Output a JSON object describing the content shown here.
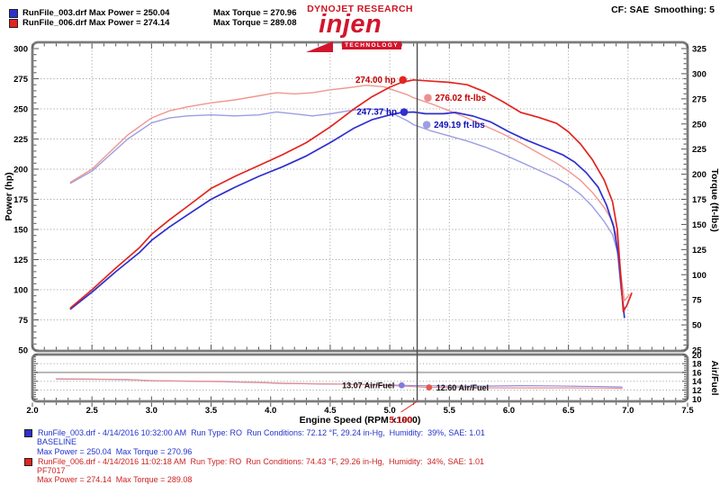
{
  "header": {
    "legend": [
      {
        "file_power": "RunFile_003.drf Max Power = 250.04",
        "torque": "Max Torque = 270.96",
        "color": "#2f2fcf"
      },
      {
        "file_power": "RunFile_006.drf Max Power = 274.14",
        "torque": "Max Torque = 289.08",
        "color": "#e2251f"
      }
    ],
    "brand_top": "DYNOJET RESEARCH",
    "logo_text": "injen",
    "logo_sub": "TECHNOLOGY",
    "settings": "CF: SAE  Smoothing: 5"
  },
  "chart_data": {
    "type": "line",
    "x_axis": {
      "label": "Engine Speed (RPM x1000)",
      "min": 2.0,
      "max": 7.5,
      "ticks": [
        "2.0",
        "2.5",
        "3.0",
        "3.5",
        "4.0",
        "4.5",
        "5.0",
        "5.5",
        "6.0",
        "6.5",
        "7.0",
        "7.5"
      ]
    },
    "axes": {
      "power": {
        "label": "Power (hp)",
        "min": 50,
        "max": 300,
        "ticks": [
          300,
          275,
          250,
          225,
          200,
          175,
          150,
          125,
          100,
          75,
          50
        ]
      },
      "torque": {
        "label": "Torque (ft-lbs)",
        "min": 25,
        "max": 325,
        "ticks": [
          325,
          300,
          275,
          250,
          225,
          200,
          175,
          150,
          125,
          100,
          75,
          50,
          25
        ]
      },
      "airfuel": {
        "label": "Air/Fuel",
        "min": 10,
        "max": 20,
        "ticks": [
          20,
          18,
          16,
          14,
          12,
          10
        ]
      }
    },
    "grid": {
      "main_vertical_rpm": [
        2.5,
        3.0,
        3.5,
        4.0,
        4.5,
        5.0,
        5.5,
        6.0,
        6.5,
        7.0
      ],
      "main_horizontal_power": [
        275,
        250,
        225,
        200,
        175,
        150,
        125,
        100,
        75
      ],
      "af_horizontal": [
        18,
        16,
        14,
        12
      ]
    },
    "cursor": {
      "rpm": 5.23,
      "readout": "5.190"
    },
    "series": [
      {
        "name": "runfile-003-torque",
        "label": "RunFile_003 Torque",
        "panel": "main",
        "axis": "torque",
        "color": "#9d9de4",
        "width": 1.4,
        "points": [
          [
            2.32,
            191
          ],
          [
            2.5,
            203
          ],
          [
            2.65,
            219
          ],
          [
            2.8,
            235
          ],
          [
            3.0,
            251
          ],
          [
            3.15,
            256
          ],
          [
            3.3,
            258
          ],
          [
            3.5,
            259
          ],
          [
            3.7,
            258
          ],
          [
            3.9,
            259
          ],
          [
            4.05,
            262
          ],
          [
            4.2,
            260
          ],
          [
            4.35,
            258
          ],
          [
            4.5,
            260
          ],
          [
            4.65,
            263
          ],
          [
            4.8,
            265
          ],
          [
            4.95,
            264
          ],
          [
            5.05,
            259
          ],
          [
            5.15,
            253
          ],
          [
            5.2,
            249.2
          ],
          [
            5.35,
            243
          ],
          [
            5.5,
            238
          ],
          [
            5.65,
            233
          ],
          [
            5.8,
            227
          ],
          [
            5.95,
            220
          ],
          [
            6.1,
            212
          ],
          [
            6.25,
            204
          ],
          [
            6.4,
            196
          ],
          [
            6.5,
            189
          ],
          [
            6.6,
            180
          ],
          [
            6.7,
            168
          ],
          [
            6.8,
            153
          ],
          [
            6.87,
            140
          ],
          [
            6.91,
            123
          ],
          [
            6.94,
            86
          ],
          [
            6.97,
            64
          ]
        ]
      },
      {
        "name": "runfile-006-torque",
        "label": "RunFile_006 Torque",
        "panel": "main",
        "axis": "torque",
        "color": "#f0978f",
        "width": 1.4,
        "points": [
          [
            2.32,
            192
          ],
          [
            2.5,
            205
          ],
          [
            2.65,
            222
          ],
          [
            2.8,
            239
          ],
          [
            3.0,
            256
          ],
          [
            3.15,
            263
          ],
          [
            3.3,
            267
          ],
          [
            3.5,
            271
          ],
          [
            3.7,
            274
          ],
          [
            3.9,
            278
          ],
          [
            4.05,
            281
          ],
          [
            4.2,
            280
          ],
          [
            4.35,
            281
          ],
          [
            4.5,
            284
          ],
          [
            4.65,
            286
          ],
          [
            4.8,
            288.5
          ],
          [
            4.95,
            287
          ],
          [
            5.05,
            283
          ],
          [
            5.15,
            279
          ],
          [
            5.2,
            276
          ],
          [
            5.35,
            270
          ],
          [
            5.5,
            263
          ],
          [
            5.65,
            256
          ],
          [
            5.8,
            248
          ],
          [
            5.95,
            240
          ],
          [
            6.1,
            231
          ],
          [
            6.25,
            221
          ],
          [
            6.4,
            211
          ],
          [
            6.5,
            203
          ],
          [
            6.6,
            194
          ],
          [
            6.7,
            182
          ],
          [
            6.8,
            167
          ],
          [
            6.87,
            153
          ],
          [
            6.91,
            136
          ],
          [
            6.94,
            100
          ],
          [
            6.97,
            74
          ],
          [
            7.01,
            80
          ]
        ]
      },
      {
        "name": "runfile-003-power",
        "label": "RunFile_003 Power",
        "panel": "main",
        "axis": "power",
        "color": "#2f2fcf",
        "width": 1.7,
        "points": [
          [
            2.32,
            84
          ],
          [
            2.5,
            98
          ],
          [
            2.7,
            115
          ],
          [
            2.9,
            131
          ],
          [
            3.0,
            141
          ],
          [
            3.15,
            152
          ],
          [
            3.3,
            162
          ],
          [
            3.5,
            175
          ],
          [
            3.7,
            185
          ],
          [
            3.9,
            194
          ],
          [
            4.1,
            202
          ],
          [
            4.3,
            211
          ],
          [
            4.5,
            222
          ],
          [
            4.7,
            234
          ],
          [
            4.85,
            241
          ],
          [
            5.0,
            245
          ],
          [
            5.1,
            247
          ],
          [
            5.2,
            247.4
          ],
          [
            5.3,
            246
          ],
          [
            5.45,
            246
          ],
          [
            5.55,
            247
          ],
          [
            5.7,
            244
          ],
          [
            5.85,
            239
          ],
          [
            6.0,
            231
          ],
          [
            6.15,
            224
          ],
          [
            6.3,
            218
          ],
          [
            6.45,
            212
          ],
          [
            6.55,
            206
          ],
          [
            6.65,
            197
          ],
          [
            6.75,
            185
          ],
          [
            6.82,
            170
          ],
          [
            6.88,
            152
          ],
          [
            6.92,
            128
          ],
          [
            6.95,
            95
          ],
          [
            6.97,
            77
          ]
        ]
      },
      {
        "name": "runfile-006-power",
        "label": "RunFile_006 Power",
        "panel": "main",
        "axis": "power",
        "color": "#e2251f",
        "width": 1.7,
        "points": [
          [
            2.32,
            85
          ],
          [
            2.5,
            100
          ],
          [
            2.7,
            118
          ],
          [
            2.9,
            135
          ],
          [
            3.0,
            146
          ],
          [
            3.15,
            158
          ],
          [
            3.3,
            169
          ],
          [
            3.5,
            184
          ],
          [
            3.7,
            194
          ],
          [
            3.9,
            203
          ],
          [
            4.1,
            212
          ],
          [
            4.3,
            222
          ],
          [
            4.5,
            235
          ],
          [
            4.7,
            250
          ],
          [
            4.85,
            260
          ],
          [
            5.0,
            268
          ],
          [
            5.1,
            272
          ],
          [
            5.2,
            274
          ],
          [
            5.35,
            273
          ],
          [
            5.5,
            272
          ],
          [
            5.65,
            270
          ],
          [
            5.8,
            264
          ],
          [
            5.95,
            256
          ],
          [
            6.1,
            247
          ],
          [
            6.25,
            243
          ],
          [
            6.4,
            238
          ],
          [
            6.5,
            231
          ],
          [
            6.6,
            221
          ],
          [
            6.7,
            208
          ],
          [
            6.8,
            191
          ],
          [
            6.87,
            173
          ],
          [
            6.91,
            150
          ],
          [
            6.94,
            110
          ],
          [
            6.96,
            82
          ],
          [
            6.99,
            87
          ],
          [
            7.03,
            97
          ]
        ]
      },
      {
        "name": "runfile-003-airfuel",
        "label": "RunFile_003 Air/Fuel",
        "panel": "af",
        "axis": "airfuel",
        "color": "#8d8de0",
        "width": 1.2,
        "points": [
          [
            2.2,
            14.5
          ],
          [
            2.5,
            14.45
          ],
          [
            2.8,
            14.35
          ],
          [
            3.0,
            14.15
          ],
          [
            3.3,
            14.0
          ],
          [
            3.6,
            13.9
          ],
          [
            3.9,
            13.7
          ],
          [
            4.1,
            13.5
          ],
          [
            4.4,
            13.4
          ],
          [
            4.7,
            13.3
          ],
          [
            5.0,
            13.15
          ],
          [
            5.12,
            13.07
          ],
          [
            5.35,
            12.95
          ],
          [
            5.6,
            12.9
          ],
          [
            5.85,
            12.92
          ],
          [
            6.1,
            13.0
          ],
          [
            6.35,
            12.95
          ],
          [
            6.6,
            12.85
          ],
          [
            6.8,
            12.78
          ],
          [
            6.95,
            12.7
          ]
        ]
      },
      {
        "name": "runfile-006-airfuel",
        "label": "RunFile_006 Air/Fuel",
        "panel": "af",
        "axis": "airfuel",
        "color": "#ec8f8f",
        "width": 1.2,
        "points": [
          [
            2.2,
            14.55
          ],
          [
            2.5,
            14.5
          ],
          [
            2.8,
            14.4
          ],
          [
            2.95,
            14.15
          ],
          [
            3.3,
            14.05
          ],
          [
            3.6,
            13.95
          ],
          [
            3.9,
            13.75
          ],
          [
            4.1,
            13.55
          ],
          [
            4.4,
            13.4
          ],
          [
            4.7,
            13.3
          ],
          [
            4.95,
            13.1
          ],
          [
            5.15,
            12.85
          ],
          [
            5.33,
            12.6
          ],
          [
            5.6,
            12.55
          ],
          [
            5.9,
            12.5
          ],
          [
            6.2,
            12.5
          ],
          [
            6.5,
            12.5
          ],
          [
            6.8,
            12.45
          ],
          [
            6.95,
            12.38
          ]
        ]
      }
    ],
    "annotations": [
      {
        "text": "274.00 hp",
        "rpm": 5.11,
        "value": 274.0,
        "axis": "power",
        "panel": "main",
        "side": "left",
        "color": "#c00000",
        "dot_color": "#e2251f"
      },
      {
        "text": "276.02 ft-lbs",
        "rpm": 5.32,
        "value": 276.02,
        "axis": "torque",
        "panel": "main",
        "side": "right",
        "color": "#c00000",
        "dot_color": "#ee8f8f"
      },
      {
        "text": "247.37 hp",
        "rpm": 5.12,
        "value": 247.37,
        "axis": "power",
        "panel": "main",
        "side": "left",
        "color": "#1010b8",
        "dot_color": "#2f2fcf"
      },
      {
        "text": "249.19 ft-lbs",
        "rpm": 5.31,
        "value": 249.19,
        "axis": "torque",
        "panel": "main",
        "side": "right",
        "color": "#1010b8",
        "dot_color": "#9d9de4"
      },
      {
        "text": "13.07 Air/Fuel",
        "rpm": 5.1,
        "value": 13.07,
        "axis": "airfuel",
        "panel": "af",
        "side": "left",
        "color": "#111111",
        "dot_color": "#7d7ddd"
      },
      {
        "text": "12.60 Air/Fuel",
        "rpm": 5.33,
        "value": 12.6,
        "axis": "airfuel",
        "panel": "af",
        "side": "right",
        "color": "#111111",
        "dot_color": "#e25b50"
      }
    ]
  },
  "footer": {
    "runs": [
      {
        "color": "#2f2fcf",
        "line1": "RunFile_003.drf - 4/14/2016 10:32:00 AM  Run Type: RO  Run Conditions: 72.12 °F, 29.24 in-Hg,  Humidity:  39%, SAE: 1.01",
        "line2": "BASELINE",
        "line3": "Max Power = 250.04  Max Torque = 270.96"
      },
      {
        "color": "#e2251f",
        "line1": "RunFile_006.drf - 4/14/2016 11:02:18 AM  Run Type: RO  Run Conditions: 74.43 °F, 29.26 in-Hg,  Humidity:  34%, SAE: 1.01",
        "line2": "PF7017",
        "line3": "Max Power = 274.14  Max Torque = 289.08"
      }
    ]
  }
}
